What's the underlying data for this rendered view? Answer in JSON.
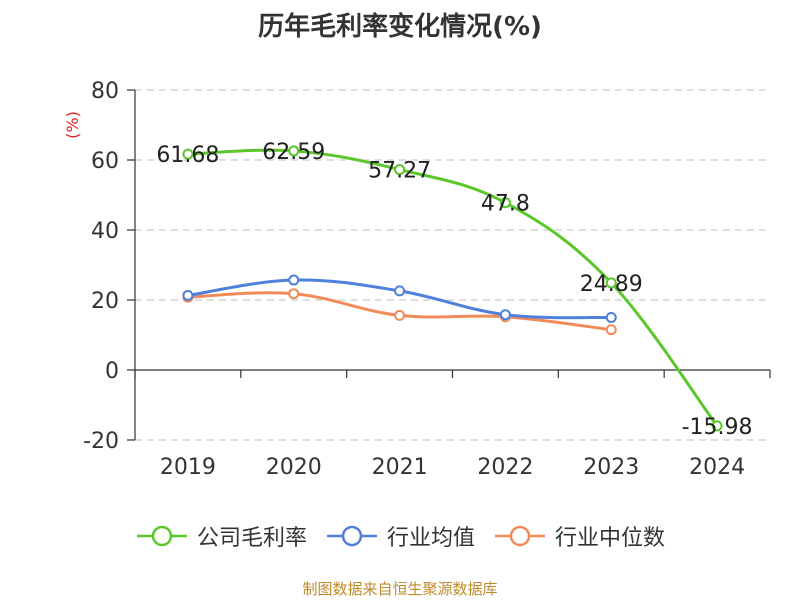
{
  "title": "历年毛利率变化情况(%)",
  "source": "制图数据来自恒生聚源数据库",
  "chart_data": {
    "type": "line",
    "categories": [
      "2019",
      "2020",
      "2021",
      "2022",
      "2023",
      "2024"
    ],
    "ylabel": "(%)",
    "ylim": [
      -20,
      80
    ],
    "yticks": [
      -20,
      0,
      20,
      40,
      60,
      80
    ],
    "grid": true,
    "legend_position": "bottom",
    "series": [
      {
        "name": "公司毛利率",
        "values": [
          61.68,
          62.59,
          57.27,
          47.8,
          24.89,
          -15.98
        ],
        "labels": [
          "61.68",
          "62.59",
          "57.27",
          "47.8",
          "24.89",
          "-15.98"
        ],
        "color": "#5cc72b"
      },
      {
        "name": "行业均值",
        "values": [
          21.3,
          25.7,
          22.6,
          15.8,
          15.0,
          null
        ],
        "color": "#4f80dc"
      },
      {
        "name": "行业中位数",
        "values": [
          20.8,
          21.8,
          15.6,
          15.2,
          11.5,
          null
        ],
        "color": "#f28b5a"
      }
    ]
  }
}
